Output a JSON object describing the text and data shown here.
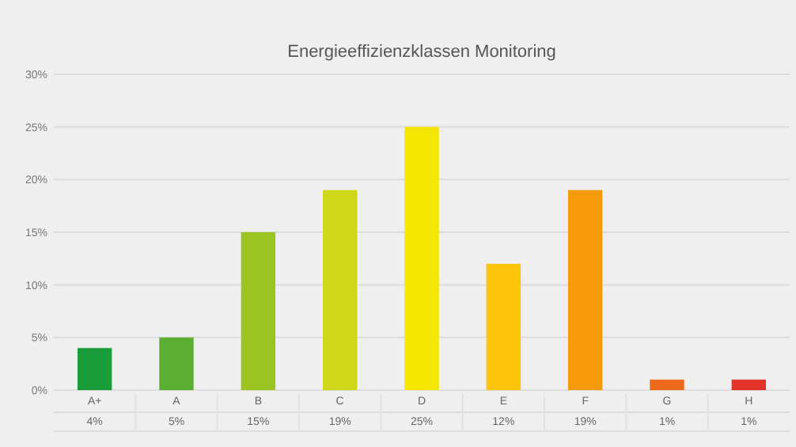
{
  "chart_data": {
    "type": "bar",
    "title": "Energieeffizienzklassen Monitoring",
    "categories": [
      "A+",
      "A",
      "B",
      "C",
      "D",
      "E",
      "F",
      "G",
      "H"
    ],
    "values": [
      4,
      5,
      15,
      19,
      25,
      12,
      19,
      1,
      1
    ],
    "colors": [
      "#1a9c3a",
      "#5aaf32",
      "#9bc322",
      "#cfd71a",
      "#f5e600",
      "#fbc40b",
      "#f59a0b",
      "#ef6a1a",
      "#e2322a"
    ],
    "value_labels": [
      "4%",
      "5%",
      "15%",
      "19%",
      "25%",
      "12%",
      "19%",
      "1%",
      "1%"
    ],
    "ylim": [
      0,
      30
    ],
    "yticks": [
      {
        "value": 0,
        "label": "0%"
      },
      {
        "value": 5,
        "label": "5%"
      },
      {
        "value": 10,
        "label": "10%"
      },
      {
        "value": 15,
        "label": "15%"
      },
      {
        "value": 20,
        "label": "20%"
      },
      {
        "value": 25,
        "label": "25%"
      },
      {
        "value": 30,
        "label": "30%"
      }
    ],
    "grid": "y"
  }
}
